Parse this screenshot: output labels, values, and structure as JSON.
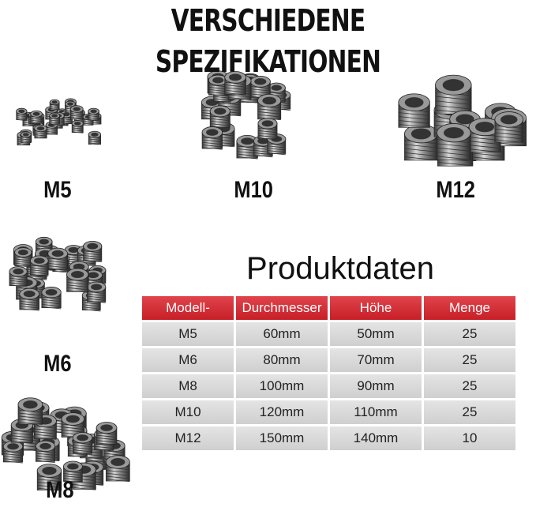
{
  "header": {
    "title": "VERSCHIEDENE SPEZIFIKATIONEN"
  },
  "labels": [
    "M5",
    "M10",
    "M12",
    "M6",
    "M8"
  ],
  "table": {
    "title": "Produktdaten",
    "headers": [
      "Modell-",
      "Durchmesser",
      "Höhe",
      "Menge"
    ],
    "rows": [
      [
        "M5",
        "60mm",
        "50mm",
        "25"
      ],
      [
        "M6",
        "80mm",
        "70mm",
        "25"
      ],
      [
        "M8",
        "100mm",
        "90mm",
        "25"
      ],
      [
        "M10",
        "120mm",
        "110mm",
        "25"
      ],
      [
        "M12",
        "150mm",
        "140mm",
        "10"
      ]
    ]
  }
}
